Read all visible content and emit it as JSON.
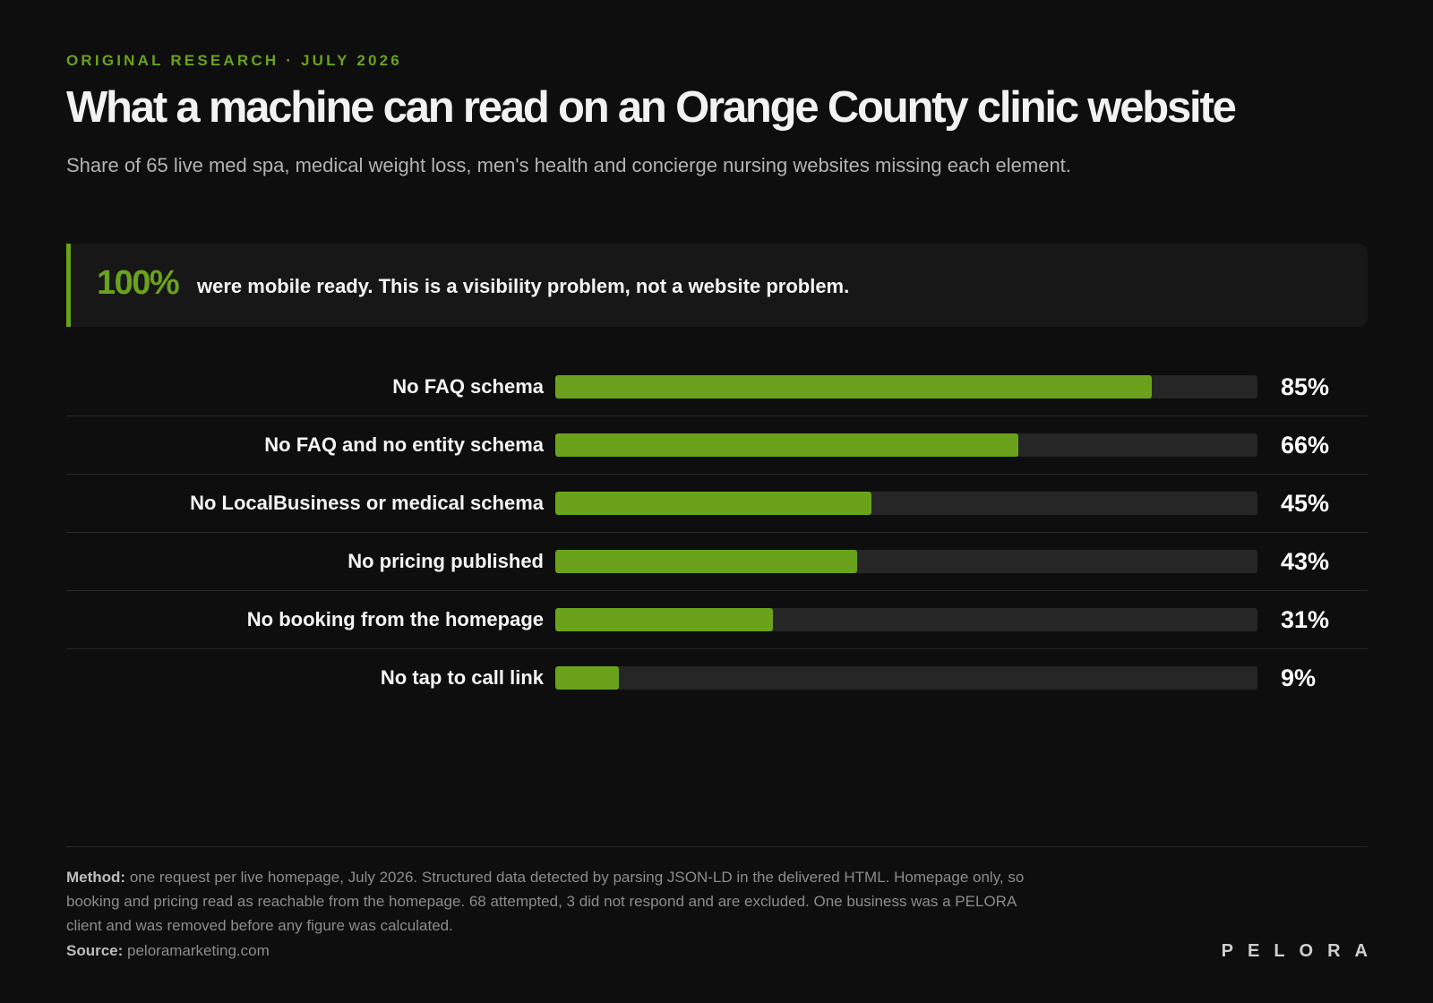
{
  "header": {
    "kicker": "ORIGINAL RESEARCH · JULY 2026",
    "title": "What a machine can read on an Orange County clinic website",
    "subtitle": "Share of 65 live med spa, medical weight loss, men's health and concierge nursing websites missing each element."
  },
  "callout": {
    "stat": "100%",
    "text": "were mobile ready. This is a visibility problem, not a website problem."
  },
  "colors": {
    "accent": "#6aa21b",
    "track": "#262626",
    "background": "#0e0e0e"
  },
  "chart_data": {
    "type": "bar",
    "orientation": "horizontal",
    "categories": [
      "No FAQ schema",
      "No FAQ and no entity schema",
      "No LocalBusiness or medical schema",
      "No pricing published",
      "No booking from the homepage",
      "No tap to call link"
    ],
    "values": [
      85,
      66,
      45,
      43,
      31,
      9
    ],
    "value_labels": [
      "85%",
      "66%",
      "45%",
      "43%",
      "31%",
      "9%"
    ],
    "xlim": [
      0,
      100
    ],
    "grid": false
  },
  "footer": {
    "method_label": "Method:",
    "method_text": " one request per live homepage, July 2026. Structured data detected by parsing JSON-LD in the delivered HTML. Homepage only, so booking and pricing read as reachable from the homepage. 68 attempted, 3 did not respond and are excluded. One business was a PELORA client and was removed before any figure was calculated.",
    "source_label": "Source:",
    "source_text": " peloramarketing.com",
    "brand": "PELORA"
  }
}
